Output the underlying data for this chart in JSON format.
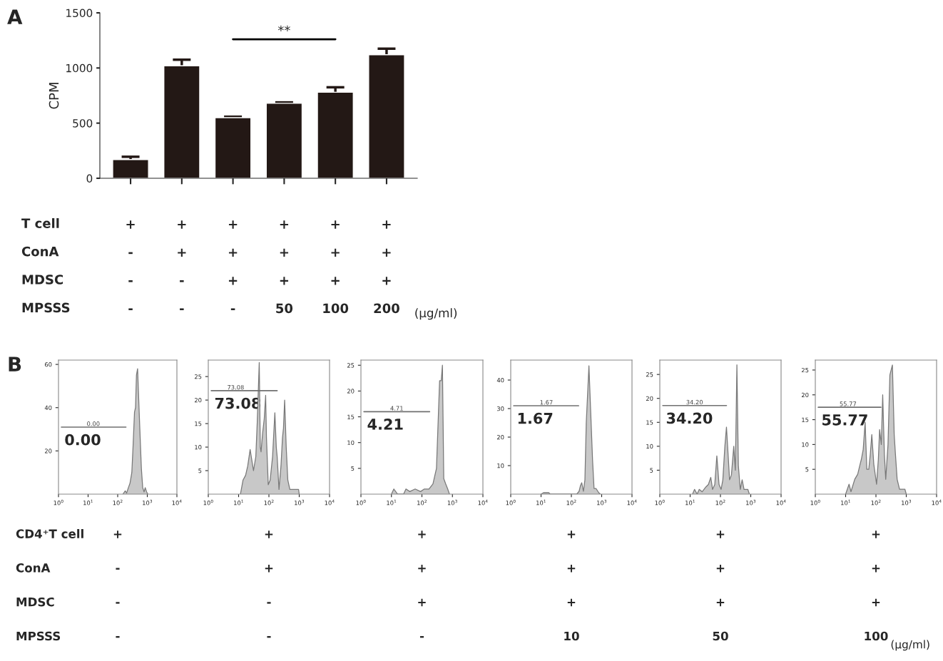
{
  "chart_data": [
    {
      "type": "bar",
      "title": "A",
      "ylabel": "CPM",
      "categories": [
        "+\n-\n-\n-",
        "+\n+\n-\n-",
        "+\n+\n+\n-",
        "+\n+\n+\n50",
        "+\n+\n+\n100",
        "+\n+\n+\n200"
      ],
      "values": [
        170,
        1020,
        550,
        680,
        780,
        1120
      ],
      "errors": [
        25,
        55,
        8,
        8,
        45,
        55
      ],
      "color": "#231815",
      "ylim": [
        0,
        1500
      ],
      "yticks": [
        0,
        500,
        1000,
        1500
      ],
      "grid": false,
      "legend": false,
      "annotations": [
        "**",
        "T cell\nConA\nMDSC\nMPSSS",
        "(μg/ml)"
      ]
    },
    {
      "type": "area",
      "title": "B",
      "log": "x",
      "xlim": [
        1,
        10000
      ],
      "xticks": [
        {
          "value": 1,
          "label": "10$^{0}$"
        },
        {
          "value": 10,
          "label": "10$^{1}$"
        },
        {
          "value": 100,
          "label": "10$^{2}$"
        },
        {
          "value": 1000,
          "label": "10$^{3}$"
        },
        {
          "value": 10000,
          "label": "10$^{4}$"
        }
      ],
      "ylim": [
        0,
        62
      ],
      "yticks": [
        20,
        40,
        60
      ],
      "grid": false,
      "legend": false,
      "series": [
        {
          "type": "area",
          "color": "#c8c8c8",
          "x": [
            150,
            180,
            200,
            230,
            260,
            300,
            330,
            370,
            400,
            430,
            470,
            500,
            560,
            630,
            700,
            780,
            850,
            950,
            1050
          ],
          "values": [
            0,
            1.5,
            0.5,
            3,
            5,
            10,
            22,
            38,
            40,
            55,
            58,
            48,
            30,
            12,
            3,
            1,
            3,
            1,
            0
          ]
        },
        {
          "type": "line",
          "color": "#707070",
          "x": [
            1.25,
            190
          ],
          "values": [
            31,
            31
          ]
        }
      ],
      "annotations": [
        "0.00",
        {
          "text": "0.00",
          "x": 15,
          "y": 31
        },
        "+\n-\n-\n-",
        "CD4⁺T cell\nConA\nMDSC\nMPSSS"
      ]
    },
    {
      "type": "area",
      "log": "x",
      "xlim": [
        1,
        10000
      ],
      "xticks": [
        {
          "value": 1,
          "label": "10$^{0}$"
        },
        {
          "value": 10,
          "label": "10$^{1}$"
        },
        {
          "value": 100,
          "label": "10$^{2}$"
        },
        {
          "value": 1000,
          "label": "10$^{3}$"
        },
        {
          "value": 10000,
          "label": "10$^{4}$"
        }
      ],
      "ylim": [
        0,
        28.5
      ],
      "yticks": [
        5,
        10,
        15,
        20,
        25
      ],
      "grid": false,
      "legend": false,
      "series": [
        {
          "type": "area",
          "color": "#c8c8c8",
          "x": [
            11.5,
            14,
            17,
            20,
            24,
            31,
            37,
            41,
            48,
            52,
            55,
            62,
            70,
            78,
            83,
            95,
            110,
            132,
            157,
            175,
            187,
            215,
            250,
            280,
            302,
            330,
            372,
            420,
            490,
            600,
            800,
            950,
            1000
          ],
          "values": [
            0,
            3,
            4,
            6,
            9.5,
            5,
            8,
            15,
            28,
            10,
            9,
            13,
            16,
            21,
            12,
            2,
            3,
            8,
            17.3,
            10,
            8,
            1,
            6,
            12,
            14,
            20,
            10,
            3,
            1,
            1,
            1,
            1,
            0
          ]
        },
        {
          "type": "line",
          "color": "#707070",
          "x": [
            1.25,
            187
          ],
          "values": [
            22,
            22
          ]
        }
      ],
      "annotations": [
        "73.08",
        {
          "text": "73.08",
          "x": 8,
          "y": 22
        },
        "+\n+\n-\n-"
      ]
    },
    {
      "type": "area",
      "log": "x",
      "xlim": [
        1,
        10000
      ],
      "xticks": [
        {
          "value": 1,
          "label": "10$^{0}$"
        },
        {
          "value": 10,
          "label": "10$^{1}$"
        },
        {
          "value": 100,
          "label": "10$^{2}$"
        },
        {
          "value": 1000,
          "label": "10$^{3}$"
        },
        {
          "value": 10000,
          "label": "10$^{4}$"
        }
      ],
      "ylim": [
        0,
        26
      ],
      "yticks": [
        5,
        10,
        15,
        20,
        25
      ],
      "grid": false,
      "legend": false,
      "series": [
        {
          "type": "area",
          "color": "#c8c8c8",
          "x": [
            10,
            12,
            16,
            25,
            30,
            40,
            60,
            90,
            120,
            170,
            230,
            300,
            380,
            430,
            470,
            520,
            600,
            700,
            800
          ],
          "values": [
            0,
            1,
            0,
            0,
            1,
            0.5,
            1,
            0.5,
            1,
            1,
            2,
            5,
            22,
            22,
            25,
            3,
            2,
            1,
            0
          ]
        },
        {
          "type": "line",
          "color": "#707070",
          "x": [
            1.25,
            179
          ],
          "values": [
            16,
            16
          ]
        }
      ],
      "annotations": [
        "4.21",
        {
          "text": "4.71",
          "x": 15,
          "y": 16
        },
        "+\n+\n+\n-"
      ]
    },
    {
      "type": "area",
      "log": "x",
      "xlim": [
        1,
        10000
      ],
      "xticks": [
        {
          "value": 1,
          "label": "10$^{0}$"
        },
        {
          "value": 10,
          "label": "10$^{1}$"
        },
        {
          "value": 100,
          "label": "10$^{2}$"
        },
        {
          "value": 1000,
          "label": "10$^{3}$"
        },
        {
          "value": 10000,
          "label": "10$^{4}$"
        }
      ],
      "ylim": [
        0,
        47
      ],
      "yticks": [
        10,
        20,
        30,
        40
      ],
      "grid": false,
      "legend": false,
      "series": [
        {
          "type": "area",
          "color": "#c8c8c8",
          "x": [
            10,
            12,
            18,
            20,
            150,
            180,
            200,
            220,
            250,
            280,
            310,
            380,
            430,
            500,
            560,
            650,
            800,
            900
          ],
          "values": [
            0,
            0.5,
            0.5,
            0,
            0,
            1,
            3,
            4,
            1,
            5,
            25,
            45,
            30,
            12,
            2,
            2,
            0.5,
            0
          ]
        },
        {
          "type": "line",
          "color": "#707070",
          "x": [
            1.25,
            173
          ],
          "values": [
            31,
            31
          ]
        }
      ],
      "annotations": [
        "1.67",
        {
          "text": "1.67",
          "x": 15,
          "y": 31
        },
        "+\n+\n+\n10"
      ]
    },
    {
      "type": "area",
      "log": "x",
      "xlim": [
        1,
        10000
      ],
      "xticks": [
        {
          "value": 1,
          "label": "10$^{0}$"
        },
        {
          "value": 10,
          "label": "10$^{1}$"
        },
        {
          "value": 100,
          "label": "10$^{2}$"
        },
        {
          "value": 1000,
          "label": "10$^{3}$"
        },
        {
          "value": 10000,
          "label": "10$^{4}$"
        }
      ],
      "ylim": [
        0,
        28
      ],
      "yticks": [
        5,
        10,
        15,
        20,
        25
      ],
      "grid": false,
      "legend": false,
      "series": [
        {
          "type": "area",
          "color": "#c8c8c8",
          "x": [
            12,
            14,
            17,
            20,
            25,
            33,
            40,
            48,
            55,
            65,
            76,
            90,
            105,
            120,
            140,
            158,
            180,
            200,
            230,
            275,
            310,
            349,
            390,
            450,
            520,
            600,
            800,
            900
          ],
          "values": [
            0,
            1,
            0,
            1,
            0.5,
            1.5,
            2,
            3.5,
            1,
            2,
            8,
            2,
            1,
            3,
            10,
            14,
            8,
            3,
            4,
            10,
            5,
            27,
            6,
            1,
            3,
            1,
            1,
            0
          ]
        },
        {
          "type": "line",
          "color": "#707070",
          "x": [
            1.25,
            158
          ],
          "values": [
            18.5,
            18.5
          ]
        }
      ],
      "annotations": [
        "34.20",
        {
          "text": "34.20",
          "x": 14,
          "y": 18.5
        },
        "+\n+\n+\n50"
      ]
    },
    {
      "type": "area",
      "log": "x",
      "xlim": [
        1,
        10000
      ],
      "xticks": [
        {
          "value": 1,
          "label": "10$^{0}$"
        },
        {
          "value": 10,
          "label": "10$^{1}$"
        },
        {
          "value": 100,
          "label": "10$^{2}$"
        },
        {
          "value": 1000,
          "label": "10$^{3}$"
        },
        {
          "value": 10000,
          "label": "10$^{4}$"
        }
      ],
      "ylim": [
        0,
        27
      ],
      "yticks": [
        5,
        10,
        15,
        20,
        25
      ],
      "grid": false,
      "legend": false,
      "series": [
        {
          "type": "area",
          "color": "#c8c8c8",
          "x": [
            10,
            13,
            15,
            20,
            25,
            30,
            33,
            38,
            44,
            50,
            58,
            65,
            73,
            85,
            105,
            120,
            132,
            150,
            167,
            190,
            210,
            250,
            288,
            349,
            400,
            440,
            500,
            600,
            750,
            900,
            1000
          ],
          "values": [
            0,
            2,
            0.5,
            3,
            4,
            6,
            7,
            9,
            14.5,
            5,
            5,
            8,
            12,
            6,
            2,
            7,
            13,
            10,
            20,
            8,
            3,
            10,
            24,
            26,
            12,
            8,
            3,
            1,
            1,
            1,
            0
          ]
        },
        {
          "type": "line",
          "color": "#707070",
          "x": [
            1.25,
            145
          ],
          "values": [
            17.5,
            17.5
          ]
        }
      ],
      "annotations": [
        "55.77",
        {
          "text": "55.77",
          "x": 12,
          "y": 17.5
        },
        "+\n+\n+\n100",
        "(μg/ml)"
      ]
    }
  ]
}
